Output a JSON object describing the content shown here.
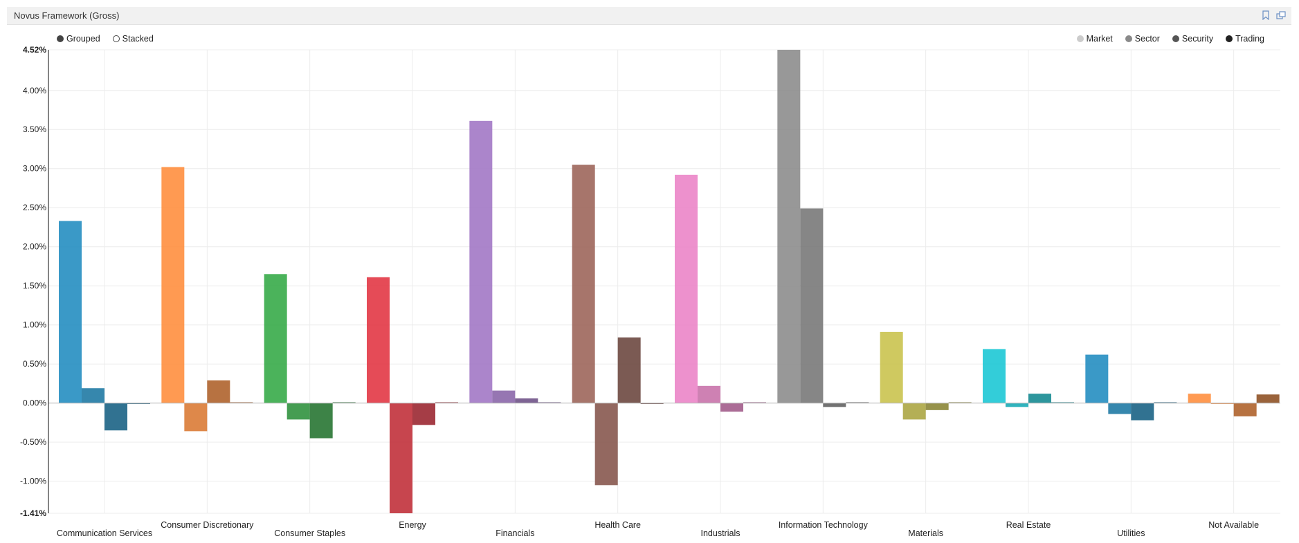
{
  "panel": {
    "title": "Novus Framework (Gross)"
  },
  "mode": {
    "grouped_label": "Grouped",
    "stacked_label": "Stacked",
    "selected": "grouped"
  },
  "legend": {
    "items": [
      {
        "label": "Market",
        "color": "#cccccc"
      },
      {
        "label": "Sector",
        "color": "#8a8a8a"
      },
      {
        "label": "Security",
        "color": "#555555"
      },
      {
        "label": "Trading",
        "color": "#222222"
      }
    ]
  },
  "chart_data": {
    "type": "bar",
    "grouping": "grouped",
    "ylim": [
      -1.41,
      4.52
    ],
    "y_ticks": [
      "4.52%",
      "4.00%",
      "3.50%",
      "3.00%",
      "2.50%",
      "2.00%",
      "1.50%",
      "1.00%",
      "0.50%",
      "0.00%",
      "-0.50%",
      "-1.00%",
      "-1.41%"
    ],
    "y_tick_values": [
      4.52,
      4.0,
      3.5,
      3.0,
      2.5,
      2.0,
      1.5,
      1.0,
      0.5,
      0.0,
      -0.5,
      -1.0,
      -1.41
    ],
    "grid": true,
    "legend_position": "top-right",
    "categories": [
      "Communication Services",
      "Consumer Discretionary",
      "Consumer Staples",
      "Energy",
      "Financials",
      "Health Care",
      "Industrials",
      "Information Technology",
      "Materials",
      "Real Estate",
      "Utilities",
      "Not Available"
    ],
    "category_colors": [
      "#1f8bbf",
      "#ff8c3a",
      "#32a844",
      "#e13240",
      "#9f74c4",
      "#9b6257",
      "#ea82c6",
      "#8a8a8a",
      "#c8c14a",
      "#17c6d4",
      "#1f8bbf",
      "#ff8c3a"
    ],
    "series": [
      {
        "name": "Market",
        "values": [
          2.33,
          3.02,
          1.65,
          1.61,
          3.61,
          3.05,
          2.92,
          4.52,
          0.91,
          0.69,
          0.62,
          0.12
        ]
      },
      {
        "name": "Sector",
        "values": [
          0.19,
          -0.36,
          -0.21,
          -1.41,
          0.16,
          -1.05,
          0.22,
          2.49,
          -0.21,
          -0.05,
          -0.14,
          0.0
        ]
      },
      {
        "name": "Security",
        "values": [
          -0.35,
          0.29,
          -0.45,
          -0.28,
          0.06,
          0.84,
          -0.11,
          -0.05,
          -0.09,
          0.12,
          -0.22,
          -0.17
        ]
      },
      {
        "name": "Trading",
        "values": [
          -0.01,
          0.01,
          0.01,
          0.01,
          0.01,
          -0.01,
          0.01,
          0.01,
          0.01,
          0.01,
          0.01,
          0.11
        ]
      }
    ]
  }
}
